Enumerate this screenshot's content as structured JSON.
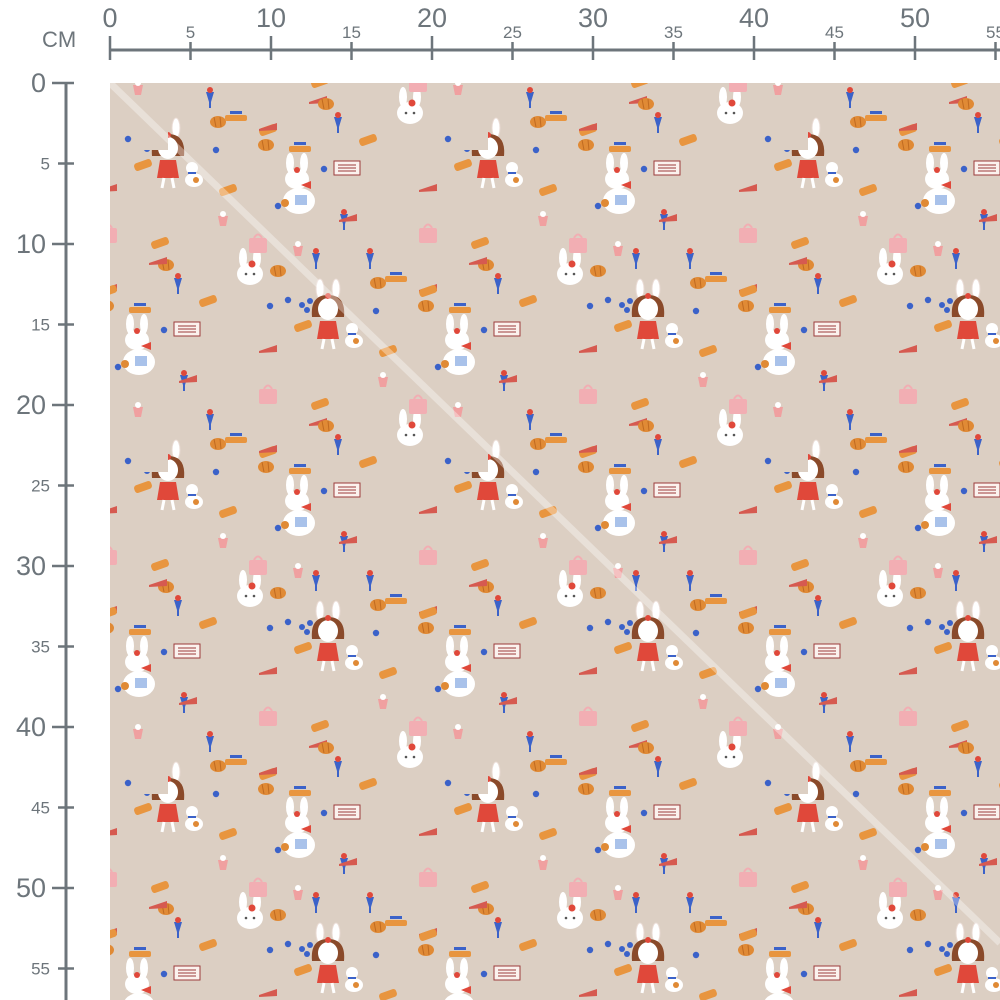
{
  "ruler": {
    "unit": "CM",
    "top_labels": [
      "0",
      "5",
      "10",
      "15",
      "20",
      "25",
      "30",
      "35",
      "40",
      "45",
      "50",
      "55"
    ],
    "left_labels": [
      "0",
      "5",
      "10",
      "15",
      "20",
      "25",
      "30",
      "35",
      "40",
      "45",
      "50",
      "55"
    ]
  },
  "fabric": {
    "background_color": "#dccfc3",
    "motifs": [
      "girl-with-bunny-ears",
      "bunny-with-dog",
      "bunny-face",
      "cafe-sign",
      "croissant",
      "blue-dots",
      "parfait",
      "shopping-bag",
      "cake-slice",
      "pastry"
    ],
    "colors": {
      "red": "#e0483a",
      "blue": "#3b62c9",
      "orange": "#e08a35",
      "pink": "#f2aeb3",
      "brown": "#8a4a2a"
    }
  }
}
